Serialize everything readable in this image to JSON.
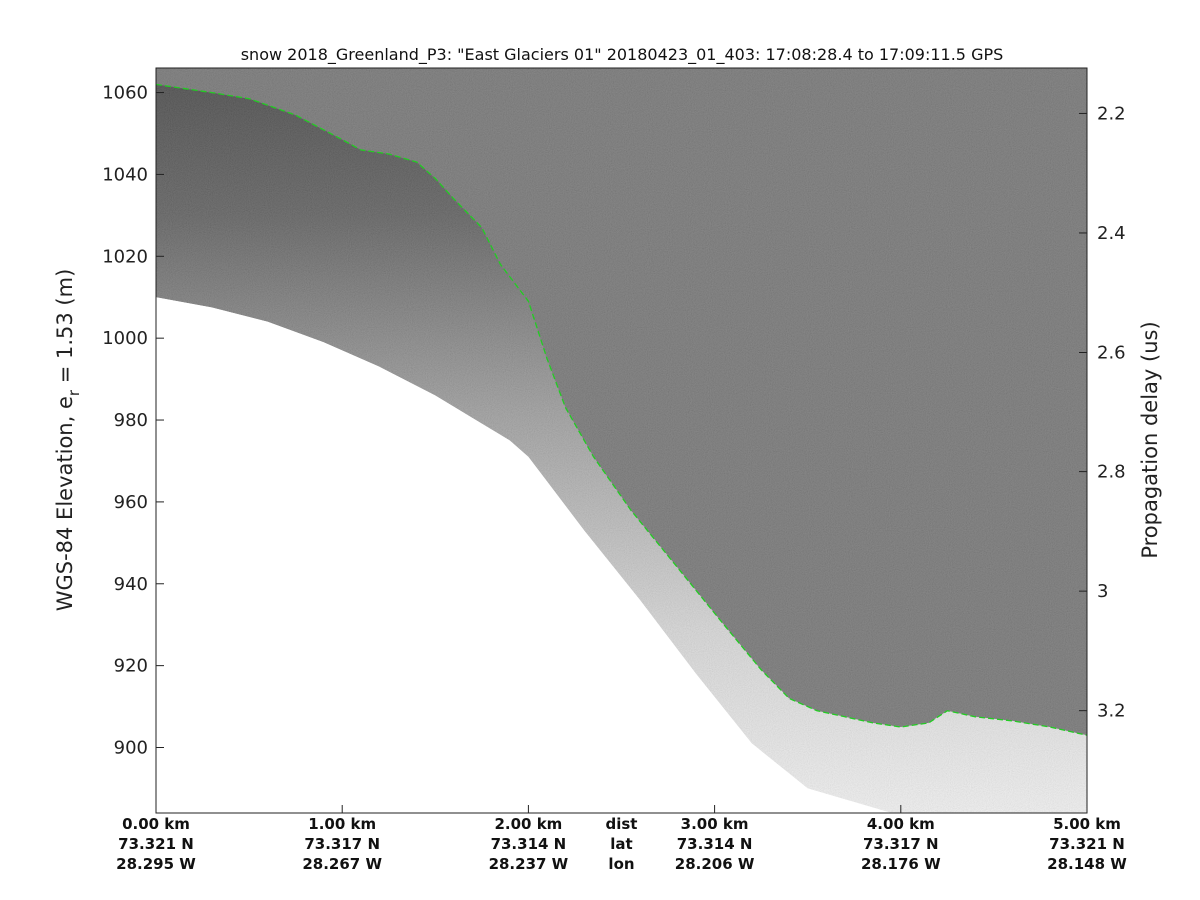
{
  "chart_data": {
    "type": "radar_echogram",
    "title": "snow 2018_Greenland_P3: \"East Glaciers 01\"  20180423_01_403: 17:08:28.4 to 17:09:11.5 GPS",
    "ylabel_main": "WGS-84 Elevation, e",
    "ylabel_sub": "r",
    "ylabel_rest": " = 1.53 (m)",
    "y2label": "Propagation delay (us)",
    "ylim": [
      884,
      1066
    ],
    "y_ticks": [
      900,
      920,
      940,
      960,
      980,
      1000,
      1020,
      1040,
      1060
    ],
    "y2_ticks": [
      {
        "label": "2.2",
        "elev": 1054.9
      },
      {
        "label": "2.4",
        "elev": 1025.7
      },
      {
        "label": "2.6",
        "elev": 996.5
      },
      {
        "label": "2.8",
        "elev": 967.4
      },
      {
        "label": "3",
        "elev": 938.2
      },
      {
        "label": "3.2",
        "elev": 909.0
      }
    ],
    "xlim_km": [
      0,
      5
    ],
    "x_ticks": [
      {
        "km": 0,
        "dist": "0.00 km",
        "lat": "73.321 N",
        "lon": "28.295 W"
      },
      {
        "km": 1,
        "dist": "1.00 km",
        "lat": "73.317 N",
        "lon": "28.267 W"
      },
      {
        "km": 2,
        "dist": "2.00 km",
        "lat": "73.314 N",
        "lon": "28.237 W"
      },
      {
        "km": 3,
        "dist": "3.00 km",
        "lat": "73.314 N",
        "lon": "28.206 W"
      },
      {
        "km": 4,
        "dist": "4.00 km",
        "lat": "73.317 N",
        "lon": "28.176 W"
      },
      {
        "km": 5,
        "dist": "5.00 km",
        "lat": "73.321 N",
        "lon": "28.148 W"
      }
    ],
    "row_labels": {
      "dist": "dist",
      "lat": "lat",
      "lon": "lon"
    },
    "row_label_km": 2.5,
    "surface_line": {
      "color": "#22cc22",
      "style": "dashed",
      "x_km": [
        0,
        0.3,
        0.5,
        0.75,
        1.0,
        1.1,
        1.25,
        1.4,
        1.5,
        1.6,
        1.75,
        1.85,
        2.0,
        2.1,
        2.2,
        2.35,
        2.55,
        2.8,
        3.05,
        3.25,
        3.4,
        3.55,
        3.7,
        3.85,
        4.0,
        4.15,
        4.25,
        4.4,
        4.6,
        4.8,
        4.95,
        5.0
      ],
      "elev": [
        1062,
        1060,
        1058.5,
        1054.5,
        1048.5,
        1046,
        1045,
        1043,
        1039,
        1034,
        1027,
        1018,
        1009,
        995,
        983,
        971,
        958,
        944,
        930,
        919,
        912,
        909,
        907.5,
        906,
        905,
        906,
        909,
        907.5,
        906.5,
        905,
        903.5,
        903
      ]
    },
    "data_floor": {
      "x_km": [
        0,
        0.3,
        0.6,
        0.9,
        1.2,
        1.5,
        1.7,
        1.9,
        2.0,
        2.1,
        2.3,
        2.6,
        2.9,
        3.2,
        3.5,
        3.8,
        3.95
      ],
      "elev": [
        1010,
        1007.5,
        1004,
        999,
        993,
        986,
        980.5,
        975,
        971,
        965,
        953,
        936,
        918,
        901,
        890,
        886,
        884
      ]
    },
    "grid": false
  }
}
